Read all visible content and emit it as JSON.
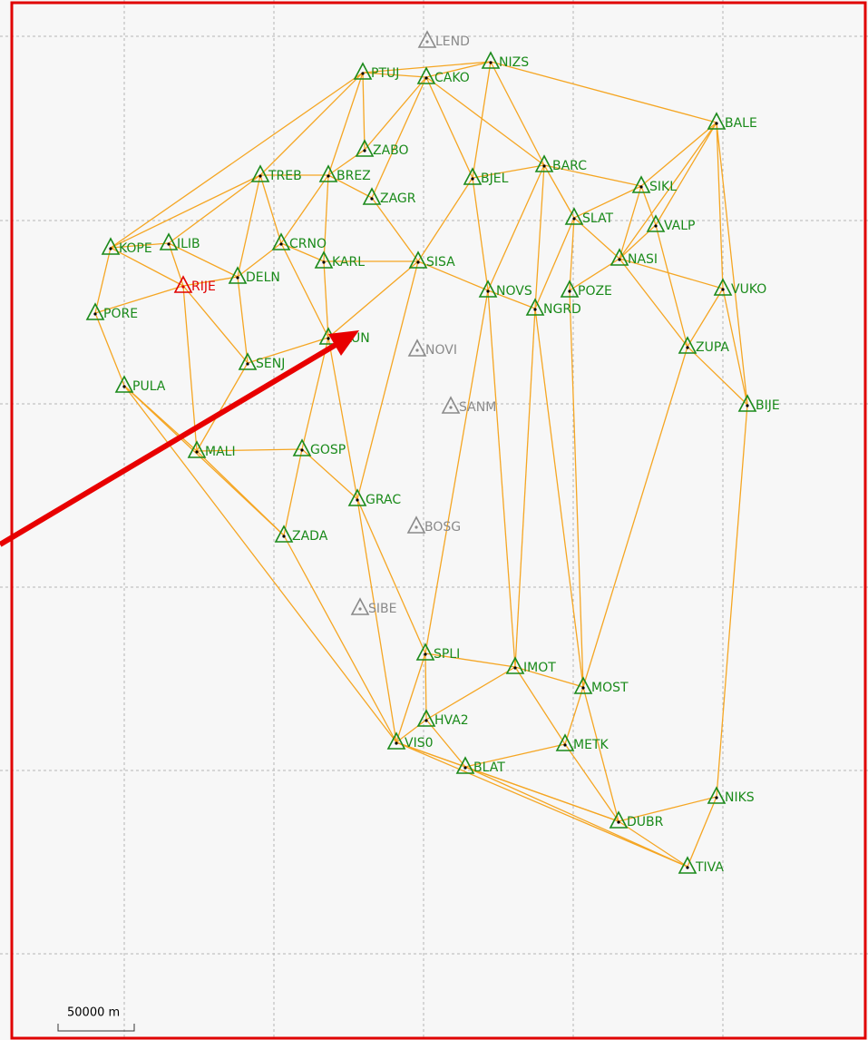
{
  "nodes": [
    {
      "label": "LEND"
    },
    {
      "label": "PTUJ"
    },
    {
      "label": "CAKO"
    },
    {
      "label": "NIZS"
    },
    {
      "label": "BALE"
    },
    {
      "label": "ZABO"
    },
    {
      "label": "TREB"
    },
    {
      "label": "BREZ"
    },
    {
      "label": "ZAGR"
    },
    {
      "label": "BJEL"
    },
    {
      "label": "BARC"
    },
    {
      "label": "SIKL"
    },
    {
      "label": "SLAT"
    },
    {
      "label": "VALP"
    },
    {
      "label": "KOPE"
    },
    {
      "label": "ILIB"
    },
    {
      "label": "CRNO"
    },
    {
      "label": "KARL"
    },
    {
      "label": "SISA"
    },
    {
      "label": "NASI"
    },
    {
      "label": "DELN"
    },
    {
      "label": "RIJE"
    },
    {
      "label": "NOVS"
    },
    {
      "label": "POZE"
    },
    {
      "label": "VUKO"
    },
    {
      "label": "NGRD"
    },
    {
      "label": "PORE"
    },
    {
      "label": "SLUN"
    },
    {
      "label": "NOVI"
    },
    {
      "label": "ZUPA"
    },
    {
      "label": "SENJ"
    },
    {
      "label": "PULA"
    },
    {
      "label": "SANM"
    },
    {
      "label": "BIJE"
    },
    {
      "label": "MALI"
    },
    {
      "label": "GOSP"
    },
    {
      "label": "GRAC"
    },
    {
      "label": "BOSG"
    },
    {
      "label": "ZADA"
    },
    {
      "label": "SIBE"
    },
    {
      "label": "SPLI"
    },
    {
      "label": "IMOT"
    },
    {
      "label": "MOST"
    },
    {
      "label": "HVA2"
    },
    {
      "label": "VIS0"
    },
    {
      "label": "METK"
    },
    {
      "label": "BLAT"
    },
    {
      "label": "NIKS"
    },
    {
      "label": "DUBR"
    },
    {
      "label": "TIVA"
    }
  ],
  "scale_bar": {
    "label": "50000 m"
  }
}
